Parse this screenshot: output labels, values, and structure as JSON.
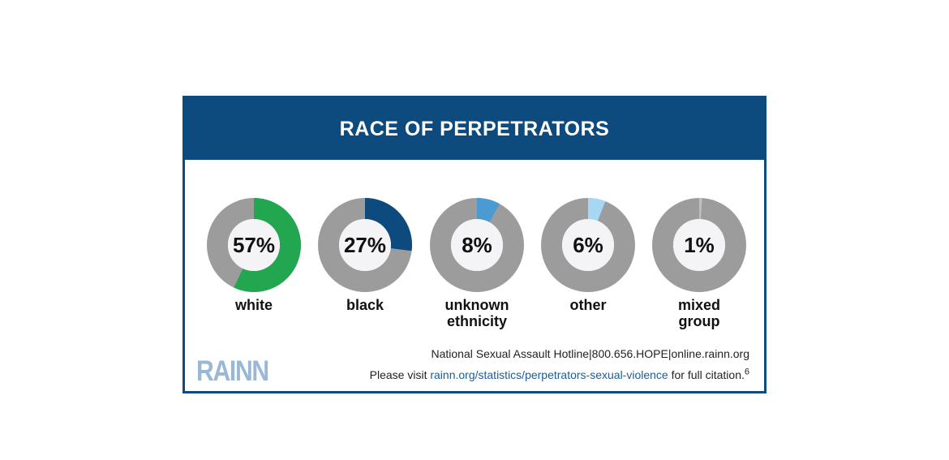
{
  "title": "RACE OF PERPETRATORS",
  "chart_data": {
    "type": "pie",
    "style": "donut",
    "title": "RACE OF PERPETRATORS",
    "categories": [
      "white",
      "black",
      "unknown\nethnicity",
      "other",
      "mixed\ngroup"
    ],
    "values": [
      57,
      27,
      8,
      6,
      1
    ],
    "value_labels": [
      "57%",
      "27%",
      "8%",
      "6%",
      "1%"
    ],
    "colors": [
      "#22a650",
      "#0d4a7e",
      "#4a9bd1",
      "#a6d8f4",
      "#c0c0c0"
    ],
    "remainder_color": "#9c9c9c",
    "legend": "none"
  },
  "footer": {
    "logo_text": "RAINN",
    "hotline": "National Sexual Assault Hotline|800.656.HOPE|online.rainn.org",
    "visit_prefix": "Please visit ",
    "visit_link": "rainn.org/statistics/perpetrators-sexual-violence",
    "visit_suffix": " for full citation.",
    "footnote": "6"
  },
  "colors": {
    "banner": "#0d4a7e",
    "logo": "#9ab7d3",
    "link": "#1f5b94"
  }
}
